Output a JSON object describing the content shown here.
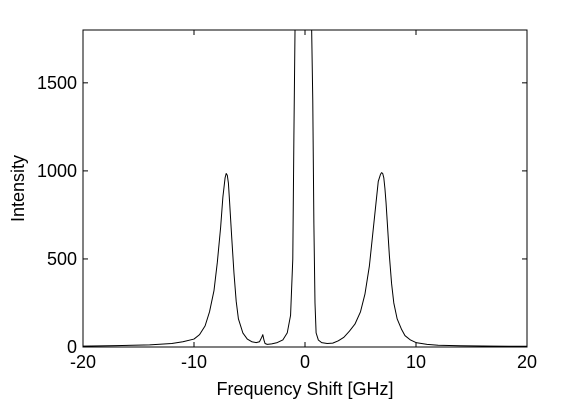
{
  "chart_data": {
    "type": "line",
    "title": "",
    "xlabel": "Frequency Shift [GHz]",
    "ylabel": "Intensity",
    "xlim": [
      -20,
      20
    ],
    "ylim": [
      0,
      1800
    ],
    "xticks": [
      -20,
      -10,
      0,
      10,
      20
    ],
    "yticks": [
      0,
      500,
      1000,
      1500
    ],
    "grid": false,
    "legend": "none",
    "colors": {
      "line": "#000000",
      "axes": "#000000",
      "background": "#ffffff"
    },
    "series": [
      {
        "x": [
          -20,
          -17,
          -14,
          -12,
          -11,
          -10,
          -9.5,
          -9,
          -8.6,
          -8.2,
          -7.9,
          -7.6,
          -7.4,
          -7.2,
          -7.1,
          -7.0,
          -6.9,
          -6.8,
          -6.6,
          -6.4,
          -6.2,
          -6.0,
          -5.6,
          -5.2,
          -4.8,
          -4.4,
          -4.1,
          -3.9,
          -3.8,
          -3.7,
          -3.6,
          -3.4,
          -3.0,
          -2.5,
          -2.0,
          -1.6,
          -1.3,
          -1.1,
          -1.0,
          -0.9,
          -0.8,
          -0.7,
          0.4,
          0.5,
          0.6,
          0.7,
          0.8,
          0.9,
          1.0,
          1.2,
          1.5,
          2.0,
          2.5,
          3.0,
          3.5,
          4.0,
          4.5,
          5.0,
          5.4,
          5.8,
          6.1,
          6.4,
          6.6,
          6.8,
          6.9,
          7.0,
          7.1,
          7.2,
          7.3,
          7.4,
          7.6,
          7.8,
          8.0,
          8.3,
          8.7,
          9.0,
          9.5,
          10,
          11,
          12,
          14,
          17,
          20
        ],
        "y": [
          5,
          8,
          12,
          20,
          30,
          45,
          70,
          120,
          200,
          320,
          480,
          680,
          850,
          960,
          985,
          975,
          930,
          830,
          620,
          420,
          260,
          160,
          80,
          45,
          30,
          25,
          30,
          55,
          70,
          40,
          20,
          15,
          18,
          25,
          40,
          80,
          180,
          500,
          1200,
          1800,
          1800,
          1800,
          1800,
          1800,
          1800,
          1400,
          700,
          250,
          80,
          40,
          25,
          20,
          22,
          35,
          55,
          90,
          130,
          200,
          300,
          460,
          640,
          820,
          940,
          980,
          990,
          985,
          960,
          900,
          820,
          720,
          520,
          360,
          250,
          160,
          100,
          65,
          40,
          25,
          15,
          10,
          7,
          5,
          4
        ]
      }
    ]
  }
}
